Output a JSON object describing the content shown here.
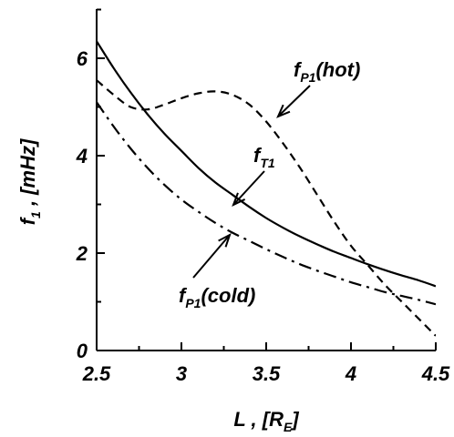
{
  "chart_data": {
    "type": "line",
    "title": "",
    "xlabel": {
      "main": "L , [R",
      "sub": "E",
      "tail": "]"
    },
    "ylabel": {
      "main": "f",
      "sub": "1",
      "tail": " , [mHz]"
    },
    "xlim": [
      2.5,
      4.5
    ],
    "ylim": [
      0,
      7
    ],
    "xticks": [
      2.5,
      3,
      3.5,
      4,
      4.5
    ],
    "xtick_labels": [
      "2.5",
      "3",
      "3.5",
      "4",
      "4.5"
    ],
    "yticks": [
      0,
      2,
      4,
      6
    ],
    "ytick_labels": [
      "0",
      "2",
      "4",
      "6"
    ],
    "grid": false,
    "series": [
      {
        "key": "fT1",
        "style": "solid",
        "color": "#000000",
        "x": [
          2.5,
          2.6,
          2.7,
          2.8,
          2.9,
          3.0,
          3.1,
          3.2,
          3.3,
          3.4,
          3.5,
          3.6,
          3.7,
          3.8,
          3.9,
          4.0,
          4.1,
          4.2,
          4.3,
          4.4,
          4.5
        ],
        "y": [
          6.35,
          5.8,
          5.3,
          4.85,
          4.45,
          4.1,
          3.75,
          3.45,
          3.2,
          2.95,
          2.72,
          2.52,
          2.34,
          2.18,
          2.03,
          1.9,
          1.77,
          1.65,
          1.54,
          1.44,
          1.32
        ]
      },
      {
        "key": "fP1_hot",
        "style": "dashed",
        "color": "#000000",
        "x": [
          2.5,
          2.6,
          2.7,
          2.8,
          2.9,
          3.0,
          3.1,
          3.2,
          3.3,
          3.4,
          3.5,
          3.6,
          3.7,
          3.8,
          3.9,
          4.0,
          4.1,
          4.2,
          4.3,
          4.4,
          4.5
        ],
        "y": [
          5.55,
          5.25,
          5.0,
          4.95,
          5.05,
          5.18,
          5.28,
          5.32,
          5.25,
          5.05,
          4.7,
          4.25,
          3.75,
          3.2,
          2.65,
          2.15,
          1.75,
          1.35,
          1.0,
          0.65,
          0.3
        ]
      },
      {
        "key": "fP1_cold",
        "style": "dashdot",
        "color": "#000000",
        "x": [
          2.5,
          2.6,
          2.7,
          2.8,
          2.9,
          3.0,
          3.1,
          3.2,
          3.3,
          3.4,
          3.5,
          3.6,
          3.7,
          3.8,
          3.9,
          4.0,
          4.1,
          4.2,
          4.3,
          4.4,
          4.5
        ],
        "y": [
          5.1,
          4.6,
          4.15,
          3.75,
          3.4,
          3.1,
          2.85,
          2.62,
          2.42,
          2.25,
          2.08,
          1.92,
          1.77,
          1.64,
          1.52,
          1.4,
          1.3,
          1.2,
          1.12,
          1.04,
          0.95
        ]
      }
    ],
    "annotations": [
      {
        "key": "fP1_hot",
        "main": "f",
        "sub": "P1",
        "tail": "(hot)"
      },
      {
        "key": "fT1",
        "main": "f",
        "sub": "T1",
        "tail": ""
      },
      {
        "key": "fP1_cold",
        "main": "f",
        "sub": "P1",
        "tail": "(cold)"
      }
    ]
  }
}
